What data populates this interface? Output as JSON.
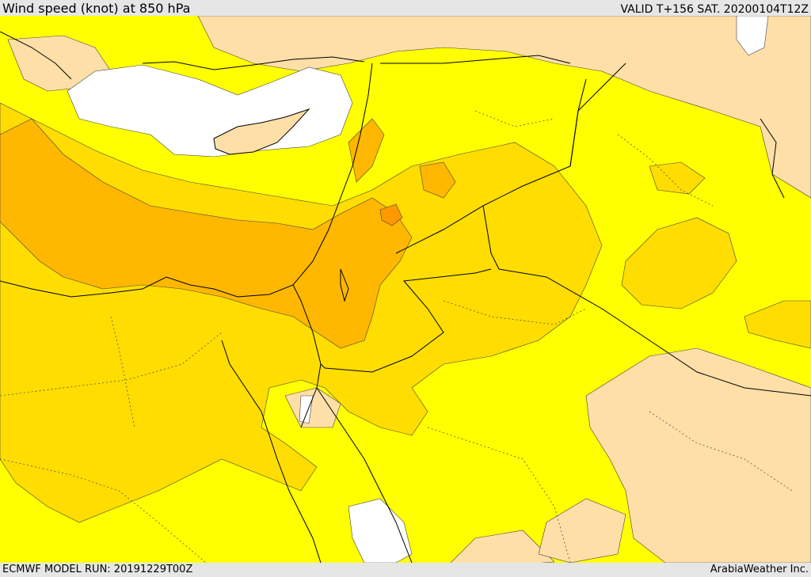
{
  "header": {
    "title": "Wind speed (knot) at 850 hPa",
    "valid": "VALID T+156 SAT. 20200104T12Z"
  },
  "footer": {
    "model_run": "ECMWF MODEL RUN: 20191229T00Z",
    "credit": "ArabiaWeather Inc."
  },
  "map": {
    "field": "wind speed at 850 hPa",
    "colors": {
      "calm": "#ffffff",
      "light": "#ffdfa8",
      "moderate": "#ffff00",
      "fresh": "#ffdd00",
      "strong": "#ffb700",
      "very_strong": "#ff9900",
      "background_bar": "#e6e6e6"
    }
  }
}
